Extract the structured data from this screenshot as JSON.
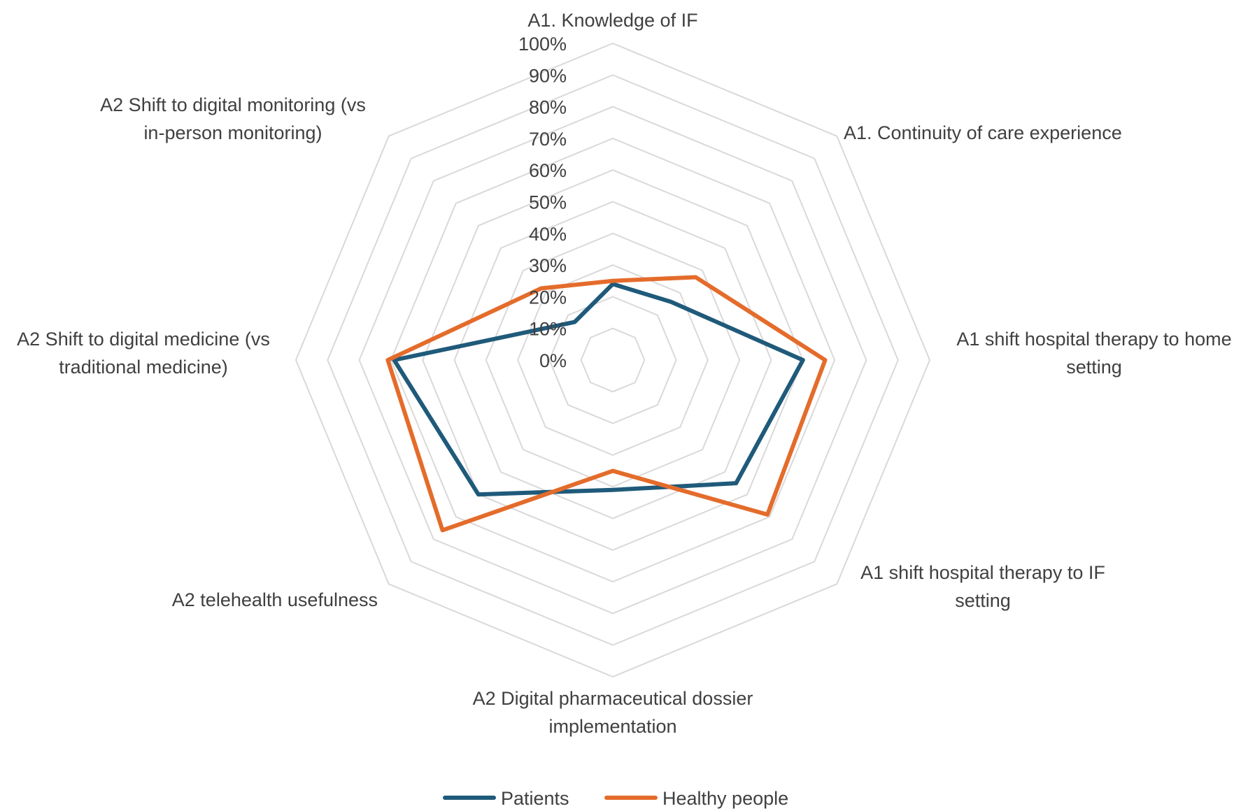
{
  "chart_data": {
    "type": "radar",
    "categories": [
      [
        "A1. Knowledge of IF"
      ],
      [
        "A1. Continuity of care experience"
      ],
      [
        "A1 shift hospital therapy to home",
        "setting"
      ],
      [
        "A1 shift hospital therapy to IF",
        "setting"
      ],
      [
        "A2 Digital pharmaceutical dossier",
        "implementation"
      ],
      [
        "A2 telehealth usefulness"
      ],
      [
        "A2 Shift to digital medicine (vs",
        "traditional medicine)"
      ],
      [
        "A2 Shift to digital monitoring (vs",
        "in-person monitoring)"
      ]
    ],
    "ticks": [
      "0%",
      "10%",
      "20%",
      "30%",
      "40%",
      "50%",
      "60%",
      "70%",
      "80%",
      "90%",
      "100%"
    ],
    "rlim": [
      0,
      100
    ],
    "grid": true,
    "legend_position": "bottom",
    "series": [
      {
        "name": "Patients",
        "color": "#1f5a7a",
        "values": [
          24,
          26,
          60,
          55,
          41,
          60,
          69,
          17
        ]
      },
      {
        "name": "Healthy people",
        "color": "#e46c2b",
        "values": [
          25,
          37,
          67,
          69,
          35,
          76,
          71,
          32
        ]
      }
    ]
  }
}
